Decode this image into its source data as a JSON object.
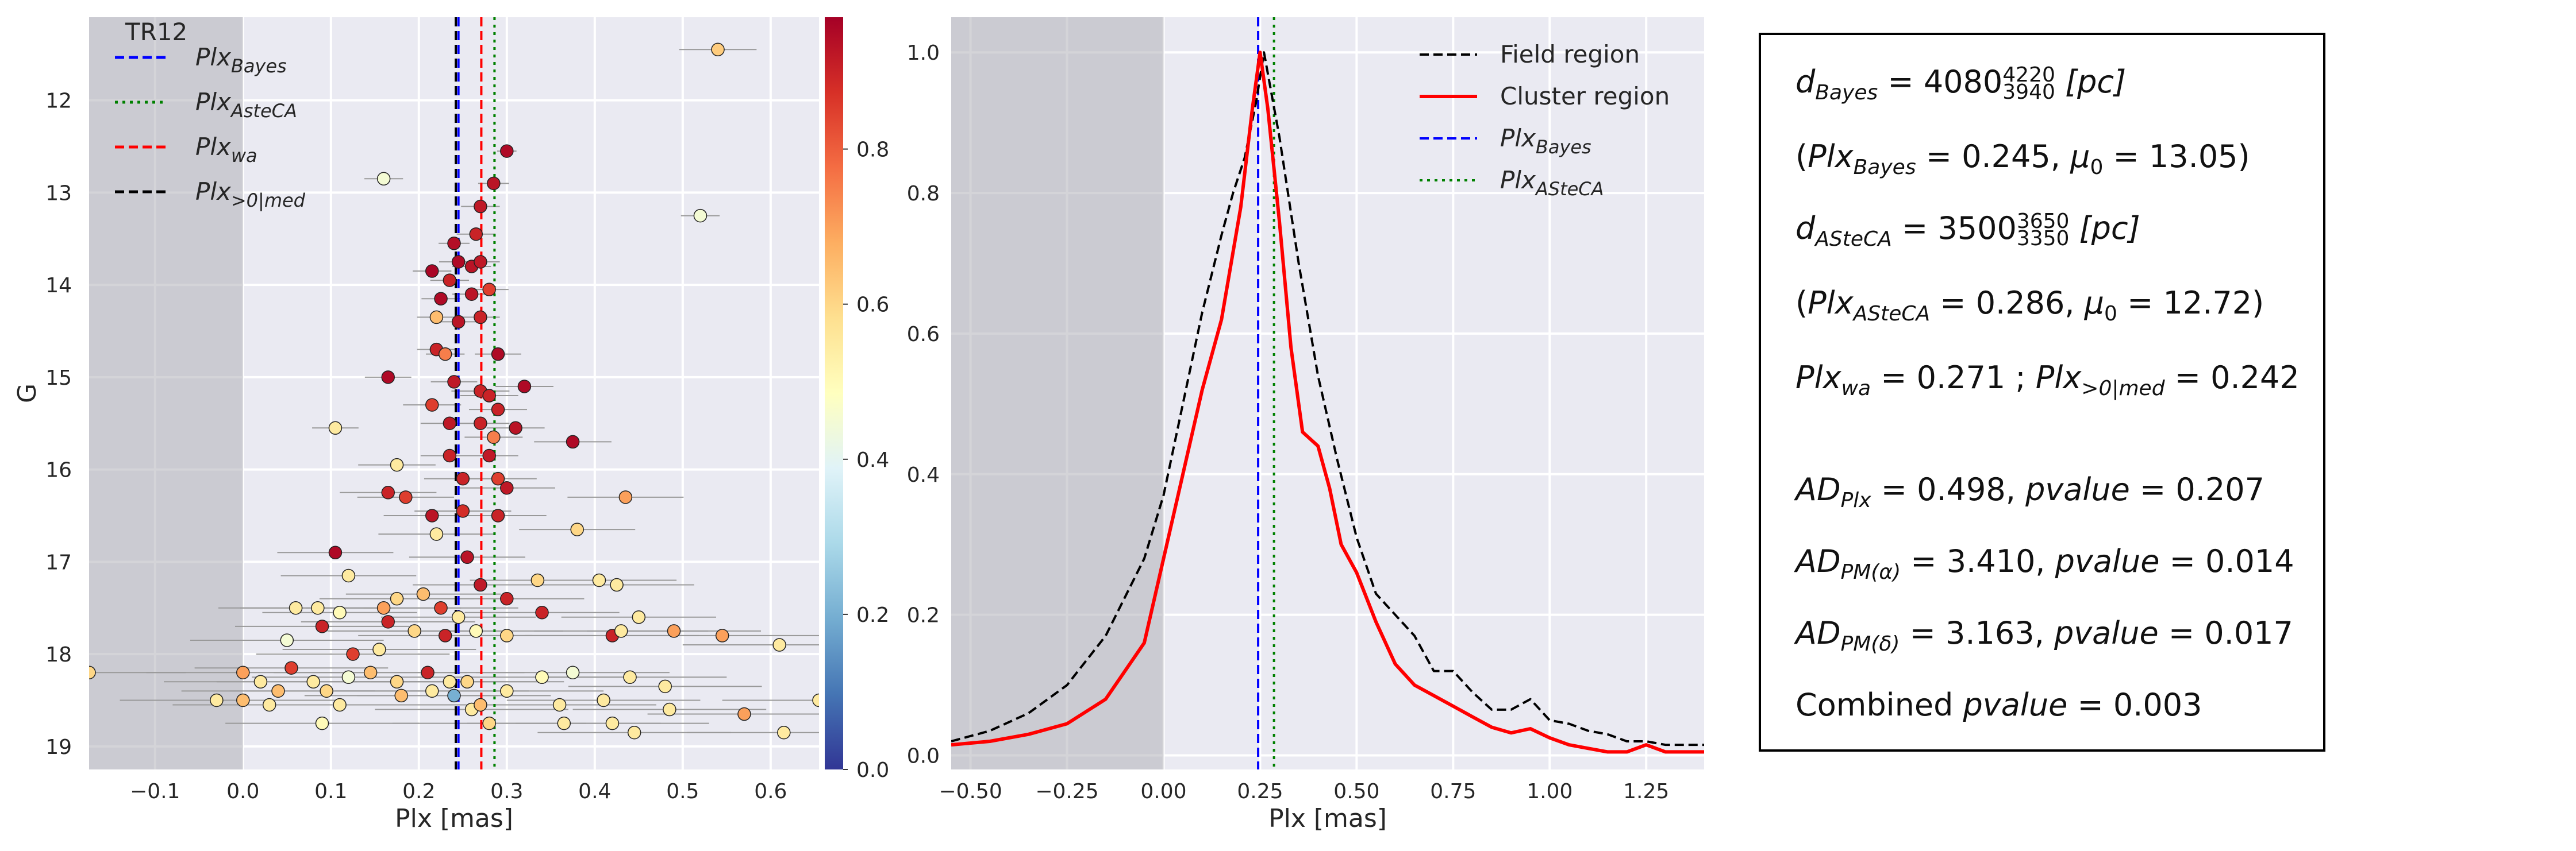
{
  "chart_data": [
    {
      "type": "scatter",
      "panel_label": "TR12",
      "xlabel": "Plx [mas]",
      "ylabel": "G",
      "xlim": [
        -0.175,
        0.655
      ],
      "ylim": [
        19.25,
        11.1
      ],
      "x_ticks": [
        "−0.1",
        "0.0",
        "0.1",
        "0.2",
        "0.3",
        "0.4",
        "0.5",
        "0.6"
      ],
      "x_tick_values": [
        -0.1,
        0.0,
        0.1,
        0.2,
        0.3,
        0.4,
        0.5,
        0.6
      ],
      "y_ticks": [
        "12",
        "13",
        "14",
        "15",
        "16",
        "17",
        "18",
        "19"
      ],
      "y_tick_values": [
        12,
        13,
        14,
        15,
        16,
        17,
        18,
        19
      ],
      "shaded_region": [
        -0.175,
        0.0
      ],
      "colorbar": {
        "ticks": [
          "0.0",
          "0.2",
          "0.4",
          "0.6",
          "0.8"
        ],
        "tick_values": [
          0.0,
          0.2,
          0.4,
          0.6,
          0.8
        ],
        "range": [
          0.0,
          0.97
        ],
        "cmap": "RdYlBu_r"
      },
      "vlines": [
        {
          "name": "Plx",
          "sub": "Bayes",
          "x": 0.245,
          "color": "#0000ff",
          "style": "dashed"
        },
        {
          "name": "Plx",
          "sub": "AsteCA",
          "x": 0.286,
          "color": "#008000",
          "style": "dotted"
        },
        {
          "name": "Plx",
          "sub": "wa",
          "x": 0.271,
          "color": "#ff0000",
          "style": "dashed"
        },
        {
          "name": "Plx",
          "sub": ">0|med",
          "x": 0.242,
          "color": "#000000",
          "style": "dashed"
        }
      ],
      "points": [
        {
          "x": 0.54,
          "y": 11.45,
          "e": 0.02,
          "p": 0.62
        },
        {
          "x": 0.16,
          "y": 12.85,
          "e": 0.01,
          "p": 0.45
        },
        {
          "x": 0.3,
          "y": 12.55,
          "e": 0.005,
          "p": 0.95
        },
        {
          "x": 0.52,
          "y": 13.25,
          "e": 0.01,
          "p": 0.45
        },
        {
          "x": 0.285,
          "y": 12.9,
          "e": 0.008,
          "p": 0.93
        },
        {
          "x": 0.27,
          "y": 13.15,
          "e": 0.01,
          "p": 0.92
        },
        {
          "x": 0.265,
          "y": 13.45,
          "e": 0.01,
          "p": 0.9
        },
        {
          "x": 0.24,
          "y": 13.55,
          "e": 0.008,
          "p": 0.94
        },
        {
          "x": 0.245,
          "y": 13.75,
          "e": 0.01,
          "p": 0.95
        },
        {
          "x": 0.26,
          "y": 13.8,
          "e": 0.01,
          "p": 0.93
        },
        {
          "x": 0.27,
          "y": 13.75,
          "e": 0.01,
          "p": 0.92
        },
        {
          "x": 0.215,
          "y": 13.85,
          "e": 0.01,
          "p": 0.96
        },
        {
          "x": 0.235,
          "y": 13.95,
          "e": 0.01,
          "p": 0.9
        },
        {
          "x": 0.225,
          "y": 14.15,
          "e": 0.01,
          "p": 0.95
        },
        {
          "x": 0.26,
          "y": 14.1,
          "e": 0.01,
          "p": 0.93
        },
        {
          "x": 0.28,
          "y": 14.05,
          "e": 0.01,
          "p": 0.85
        },
        {
          "x": 0.22,
          "y": 14.35,
          "e": 0.01,
          "p": 0.65
        },
        {
          "x": 0.245,
          "y": 14.4,
          "e": 0.01,
          "p": 0.93
        },
        {
          "x": 0.27,
          "y": 14.35,
          "e": 0.01,
          "p": 0.9
        },
        {
          "x": 0.22,
          "y": 14.7,
          "e": 0.01,
          "p": 0.9
        },
        {
          "x": 0.23,
          "y": 14.75,
          "e": 0.01,
          "p": 0.75
        },
        {
          "x": 0.29,
          "y": 14.75,
          "e": 0.012,
          "p": 0.95
        },
        {
          "x": 0.165,
          "y": 15.0,
          "e": 0.012,
          "p": 0.95
        },
        {
          "x": 0.24,
          "y": 15.05,
          "e": 0.012,
          "p": 0.92
        },
        {
          "x": 0.27,
          "y": 15.15,
          "e": 0.015,
          "p": 0.9
        },
        {
          "x": 0.28,
          "y": 15.2,
          "e": 0.015,
          "p": 0.9
        },
        {
          "x": 0.32,
          "y": 15.1,
          "e": 0.015,
          "p": 0.95
        },
        {
          "x": 0.215,
          "y": 15.3,
          "e": 0.015,
          "p": 0.85
        },
        {
          "x": 0.29,
          "y": 15.35,
          "e": 0.015,
          "p": 0.9
        },
        {
          "x": 0.105,
          "y": 15.55,
          "e": 0.012,
          "p": 0.55
        },
        {
          "x": 0.235,
          "y": 15.5,
          "e": 0.015,
          "p": 0.92
        },
        {
          "x": 0.27,
          "y": 15.5,
          "e": 0.015,
          "p": 0.9
        },
        {
          "x": 0.31,
          "y": 15.55,
          "e": 0.015,
          "p": 0.93
        },
        {
          "x": 0.285,
          "y": 15.65,
          "e": 0.015,
          "p": 0.75
        },
        {
          "x": 0.375,
          "y": 15.7,
          "e": 0.02,
          "p": 0.95
        },
        {
          "x": 0.235,
          "y": 15.85,
          "e": 0.015,
          "p": 0.9
        },
        {
          "x": 0.28,
          "y": 15.85,
          "e": 0.015,
          "p": 0.92
        },
        {
          "x": 0.175,
          "y": 15.95,
          "e": 0.02,
          "p": 0.55
        },
        {
          "x": 0.25,
          "y": 16.1,
          "e": 0.02,
          "p": 0.9
        },
        {
          "x": 0.29,
          "y": 16.1,
          "e": 0.02,
          "p": 0.85
        },
        {
          "x": 0.165,
          "y": 16.25,
          "e": 0.025,
          "p": 0.9
        },
        {
          "x": 0.185,
          "y": 16.3,
          "e": 0.025,
          "p": 0.85
        },
        {
          "x": 0.3,
          "y": 16.2,
          "e": 0.025,
          "p": 0.92
        },
        {
          "x": 0.435,
          "y": 16.3,
          "e": 0.03,
          "p": 0.7
        },
        {
          "x": 0.215,
          "y": 16.5,
          "e": 0.025,
          "p": 0.93
        },
        {
          "x": 0.25,
          "y": 16.45,
          "e": 0.025,
          "p": 0.88
        },
        {
          "x": 0.29,
          "y": 16.5,
          "e": 0.025,
          "p": 0.9
        },
        {
          "x": 0.38,
          "y": 16.65,
          "e": 0.03,
          "p": 0.6
        },
        {
          "x": 0.22,
          "y": 16.7,
          "e": 0.03,
          "p": 0.55
        },
        {
          "x": 0.105,
          "y": 16.9,
          "e": 0.03,
          "p": 0.95
        },
        {
          "x": 0.255,
          "y": 16.95,
          "e": 0.03,
          "p": 0.93
        },
        {
          "x": 0.12,
          "y": 17.15,
          "e": 0.035,
          "p": 0.55
        },
        {
          "x": 0.27,
          "y": 17.25,
          "e": 0.035,
          "p": 0.92
        },
        {
          "x": 0.335,
          "y": 17.2,
          "e": 0.035,
          "p": 0.6
        },
        {
          "x": 0.405,
          "y": 17.2,
          "e": 0.04,
          "p": 0.55
        },
        {
          "x": 0.425,
          "y": 17.25,
          "e": 0.04,
          "p": 0.55
        },
        {
          "x": 0.175,
          "y": 17.4,
          "e": 0.04,
          "p": 0.6
        },
        {
          "x": 0.205,
          "y": 17.35,
          "e": 0.04,
          "p": 0.65
        },
        {
          "x": 0.3,
          "y": 17.4,
          "e": 0.04,
          "p": 0.9
        },
        {
          "x": 0.06,
          "y": 17.5,
          "e": 0.04,
          "p": 0.55
        },
        {
          "x": 0.085,
          "y": 17.5,
          "e": 0.04,
          "p": 0.55
        },
        {
          "x": 0.11,
          "y": 17.55,
          "e": 0.04,
          "p": 0.5
        },
        {
          "x": 0.16,
          "y": 17.5,
          "e": 0.04,
          "p": 0.7
        },
        {
          "x": 0.225,
          "y": 17.5,
          "e": 0.04,
          "p": 0.85
        },
        {
          "x": 0.245,
          "y": 17.6,
          "e": 0.04,
          "p": 0.55
        },
        {
          "x": 0.34,
          "y": 17.55,
          "e": 0.04,
          "p": 0.9
        },
        {
          "x": 0.45,
          "y": 17.6,
          "e": 0.04,
          "p": 0.55
        },
        {
          "x": 0.09,
          "y": 17.7,
          "e": 0.045,
          "p": 0.9
        },
        {
          "x": 0.165,
          "y": 17.65,
          "e": 0.045,
          "p": 0.9
        },
        {
          "x": 0.195,
          "y": 17.75,
          "e": 0.045,
          "p": 0.6
        },
        {
          "x": 0.23,
          "y": 17.8,
          "e": 0.045,
          "p": 0.9
        },
        {
          "x": 0.265,
          "y": 17.75,
          "e": 0.045,
          "p": 0.5
        },
        {
          "x": 0.3,
          "y": 17.8,
          "e": 0.045,
          "p": 0.6
        },
        {
          "x": 0.42,
          "y": 17.8,
          "e": 0.045,
          "p": 0.9
        },
        {
          "x": 0.43,
          "y": 17.75,
          "e": 0.045,
          "p": 0.55
        },
        {
          "x": 0.49,
          "y": 17.75,
          "e": 0.045,
          "p": 0.7
        },
        {
          "x": 0.545,
          "y": 17.8,
          "e": 0.05,
          "p": 0.7
        },
        {
          "x": 0.05,
          "y": 17.85,
          "e": 0.05,
          "p": 0.45
        },
        {
          "x": 0.155,
          "y": 17.95,
          "e": 0.05,
          "p": 0.55
        },
        {
          "x": 0.125,
          "y": 18.0,
          "e": 0.05,
          "p": 0.85
        },
        {
          "x": 0.61,
          "y": 17.9,
          "e": 0.05,
          "p": 0.55
        },
        {
          "x": 0.0,
          "y": 18.2,
          "e": 0.05,
          "p": 0.7
        },
        {
          "x": 0.055,
          "y": 18.15,
          "e": 0.05,
          "p": 0.85
        },
        {
          "x": 0.08,
          "y": 18.3,
          "e": 0.05,
          "p": 0.55
        },
        {
          "x": 0.12,
          "y": 18.25,
          "e": 0.05,
          "p": 0.45
        },
        {
          "x": 0.145,
          "y": 18.2,
          "e": 0.05,
          "p": 0.65
        },
        {
          "x": 0.175,
          "y": 18.3,
          "e": 0.05,
          "p": 0.6
        },
        {
          "x": 0.21,
          "y": 18.2,
          "e": 0.05,
          "p": 0.9
        },
        {
          "x": 0.235,
          "y": 18.3,
          "e": 0.05,
          "p": 0.55
        },
        {
          "x": 0.255,
          "y": 18.3,
          "e": 0.05,
          "p": 0.6
        },
        {
          "x": 0.34,
          "y": 18.25,
          "e": 0.05,
          "p": 0.5
        },
        {
          "x": 0.375,
          "y": 18.2,
          "e": 0.05,
          "p": 0.45
        },
        {
          "x": 0.44,
          "y": 18.25,
          "e": 0.05,
          "p": 0.55
        },
        {
          "x": 0.48,
          "y": 18.35,
          "e": 0.05,
          "p": 0.55
        },
        {
          "x": -0.175,
          "y": 18.2,
          "e": 0.05,
          "p": 0.6
        },
        {
          "x": 0.02,
          "y": 18.3,
          "e": 0.05,
          "p": 0.55
        },
        {
          "x": 0.04,
          "y": 18.4,
          "e": 0.05,
          "p": 0.65
        },
        {
          "x": 0.095,
          "y": 18.4,
          "e": 0.05,
          "p": 0.6
        },
        {
          "x": 0.18,
          "y": 18.45,
          "e": 0.05,
          "p": 0.65
        },
        {
          "x": 0.215,
          "y": 18.4,
          "e": 0.05,
          "p": 0.55
        },
        {
          "x": 0.24,
          "y": 18.45,
          "e": 0.05,
          "p": 0.2
        },
        {
          "x": 0.3,
          "y": 18.4,
          "e": 0.05,
          "p": 0.55
        },
        {
          "x": -0.03,
          "y": 18.5,
          "e": 0.05,
          "p": 0.55
        },
        {
          "x": 0.0,
          "y": 18.5,
          "e": 0.05,
          "p": 0.65
        },
        {
          "x": 0.03,
          "y": 18.55,
          "e": 0.05,
          "p": 0.55
        },
        {
          "x": 0.11,
          "y": 18.55,
          "e": 0.05,
          "p": 0.55
        },
        {
          "x": 0.26,
          "y": 18.6,
          "e": 0.05,
          "p": 0.55
        },
        {
          "x": 0.27,
          "y": 18.55,
          "e": 0.05,
          "p": 0.65
        },
        {
          "x": 0.36,
          "y": 18.55,
          "e": 0.05,
          "p": 0.55
        },
        {
          "x": 0.41,
          "y": 18.5,
          "e": 0.05,
          "p": 0.55
        },
        {
          "x": 0.485,
          "y": 18.6,
          "e": 0.05,
          "p": 0.55
        },
        {
          "x": 0.09,
          "y": 18.75,
          "e": 0.05,
          "p": 0.5
        },
        {
          "x": 0.28,
          "y": 18.75,
          "e": 0.05,
          "p": 0.6
        },
        {
          "x": 0.365,
          "y": 18.75,
          "e": 0.05,
          "p": 0.55
        },
        {
          "x": 0.42,
          "y": 18.75,
          "e": 0.05,
          "p": 0.55
        },
        {
          "x": 0.57,
          "y": 18.65,
          "e": 0.05,
          "p": 0.7
        },
        {
          "x": 0.445,
          "y": 18.85,
          "e": 0.05,
          "p": 0.55
        },
        {
          "x": 0.615,
          "y": 18.85,
          "e": 0.05,
          "p": 0.55
        },
        {
          "x": 0.655,
          "y": 18.5,
          "e": 0.05,
          "p": 0.55
        }
      ]
    },
    {
      "type": "line",
      "xlabel": "Plx [mas]",
      "ylabel": "",
      "xlim": [
        -0.55,
        1.4
      ],
      "ylim": [
        -0.02,
        1.05
      ],
      "x_ticks": [
        "−0.50",
        "−0.25",
        "0.00",
        "0.25",
        "0.50",
        "0.75",
        "1.00",
        "1.25"
      ],
      "x_tick_values": [
        -0.5,
        -0.25,
        0.0,
        0.25,
        0.5,
        0.75,
        1.0,
        1.25
      ],
      "y_ticks": [
        "0.0",
        "0.2",
        "0.4",
        "0.6",
        "0.8",
        "1.0"
      ],
      "y_tick_values": [
        0.0,
        0.2,
        0.4,
        0.6,
        0.8,
        1.0
      ],
      "shaded_region": [
        -0.55,
        0.0
      ],
      "series": [
        {
          "name": "Field region",
          "color": "#000000",
          "style": "dashed",
          "x": [
            -0.55,
            -0.45,
            -0.35,
            -0.25,
            -0.15,
            -0.05,
            0.0,
            0.05,
            0.1,
            0.15,
            0.18,
            0.21,
            0.24,
            0.26,
            0.3,
            0.35,
            0.4,
            0.45,
            0.5,
            0.55,
            0.6,
            0.65,
            0.7,
            0.75,
            0.8,
            0.85,
            0.9,
            0.95,
            1.0,
            1.05,
            1.1,
            1.15,
            1.2,
            1.25,
            1.3,
            1.35,
            1.4
          ],
          "y": [
            0.02,
            0.035,
            0.06,
            0.1,
            0.17,
            0.28,
            0.37,
            0.5,
            0.63,
            0.74,
            0.8,
            0.85,
            0.93,
            1.0,
            0.88,
            0.7,
            0.54,
            0.42,
            0.31,
            0.23,
            0.2,
            0.17,
            0.12,
            0.12,
            0.09,
            0.065,
            0.065,
            0.08,
            0.05,
            0.045,
            0.035,
            0.03,
            0.02,
            0.02,
            0.015,
            0.015,
            0.015
          ]
        },
        {
          "name": "Cluster region",
          "color": "#ff0000",
          "style": "solid",
          "x": [
            -0.55,
            -0.45,
            -0.35,
            -0.25,
            -0.15,
            -0.05,
            0.0,
            0.05,
            0.1,
            0.15,
            0.2,
            0.23,
            0.25,
            0.27,
            0.3,
            0.33,
            0.36,
            0.4,
            0.43,
            0.46,
            0.5,
            0.55,
            0.6,
            0.65,
            0.7,
            0.75,
            0.8,
            0.85,
            0.9,
            0.95,
            1.0,
            1.05,
            1.1,
            1.15,
            1.2,
            1.25,
            1.3,
            1.35,
            1.4
          ],
          "y": [
            0.015,
            0.02,
            0.03,
            0.045,
            0.08,
            0.16,
            0.28,
            0.4,
            0.52,
            0.62,
            0.78,
            0.92,
            1.0,
            0.92,
            0.76,
            0.58,
            0.46,
            0.44,
            0.38,
            0.3,
            0.26,
            0.19,
            0.13,
            0.1,
            0.085,
            0.07,
            0.055,
            0.04,
            0.032,
            0.038,
            0.025,
            0.015,
            0.01,
            0.005,
            0.005,
            0.015,
            0.005,
            0.005,
            0.005
          ]
        }
      ],
      "vlines": [
        {
          "name": "Plx",
          "sub": "Bayes",
          "x": 0.245,
          "color": "#0000ff",
          "style": "dashed"
        },
        {
          "name": "Plx",
          "sub": "ASteCA",
          "x": 0.286,
          "color": "#008000",
          "style": "dotted"
        }
      ],
      "legend_position": "top-right"
    }
  ],
  "stats": {
    "d_bayes": {
      "label": "d",
      "sub": "Bayes",
      "value": "4080",
      "sub_val": "3940",
      "sup_val": "4220",
      "unit": "[pc]"
    },
    "plx_bayes": {
      "plx_label": "Plx",
      "plx_sub": "Bayes",
      "plx_value": "0.245",
      "mu_value": "13.05"
    },
    "d_asteca": {
      "label": "d",
      "sub": "ASteCA",
      "value": "3500",
      "sub_val": "3350",
      "sup_val": "3650",
      "unit": "[pc]"
    },
    "plx_asteca": {
      "plx_label": "Plx",
      "plx_sub": "ASteCA",
      "plx_value": "0.286",
      "mu_value": "12.72"
    },
    "plx_wa": {
      "label": "Plx",
      "sub": "wa",
      "value": "0.271",
      "label2": "Plx",
      "sub2": ">0|med",
      "value2": "0.242"
    },
    "ad_plx": {
      "label": "AD",
      "sub": "Plx",
      "value": "0.498",
      "pvalue": "0.207"
    },
    "ad_pma": {
      "label": "AD",
      "sub": "PM(α)",
      "value": "3.410",
      "pvalue": "0.014"
    },
    "ad_pmd": {
      "label": "AD",
      "sub": "PM(δ)",
      "value": "3.163",
      "pvalue": "0.017"
    },
    "combined": {
      "label": "Combined",
      "pvalue_label": "pvalue",
      "value": "0.003"
    }
  }
}
